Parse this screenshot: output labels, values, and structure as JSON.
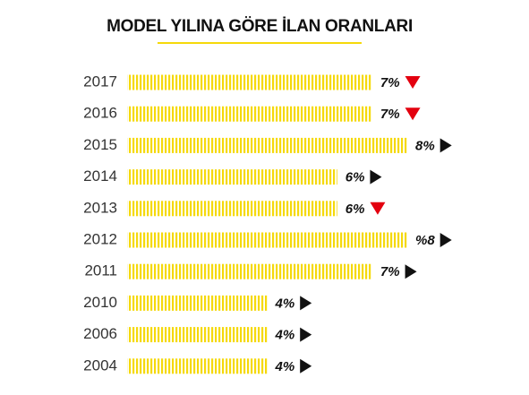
{
  "chart_data": {
    "type": "bar",
    "orientation": "horizontal",
    "title": "MODEL YILINA GÖRE İLAN ORANLARI",
    "categories": [
      "2017",
      "2016",
      "2015",
      "2014",
      "2013",
      "2012",
      "2011",
      "2010",
      "2006",
      "2004"
    ],
    "values": [
      7,
      7,
      8,
      6,
      6,
      8,
      7,
      4,
      4,
      4
    ],
    "value_labels": [
      "7%",
      "7%",
      "8%",
      "6%",
      "6%",
      "%8",
      "7%",
      "4%",
      "4%",
      "4%"
    ],
    "color": "#f5d90a",
    "arrows": [
      "down",
      "down",
      "right",
      "right",
      "down",
      "right",
      "right",
      "right",
      "right",
      "right"
    ],
    "arrow_colors": {
      "down": "#e3000f",
      "right": "#111111"
    }
  }
}
